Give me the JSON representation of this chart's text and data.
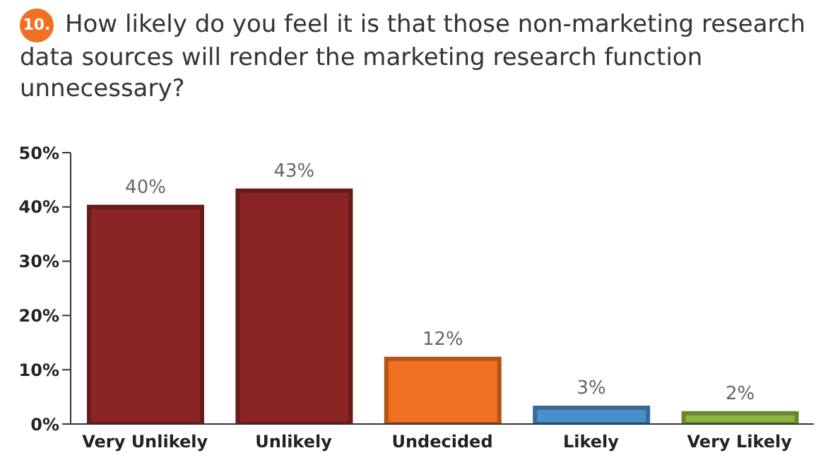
{
  "chart_data": {
    "type": "bar",
    "title": "How likely do you feel it is that those non-marketing research data sources will render the marketing research function unnecessary?",
    "annotations": [
      "10."
    ],
    "categories": [
      "Very Unlikely",
      "Unlikely",
      "Undecided",
      "Likely",
      "Very Likely"
    ],
    "values": [
      40,
      43,
      12,
      3,
      2
    ],
    "colors": [
      "#8b2424",
      "#8b2424",
      "#f07022",
      "#4a8fcb",
      "#8cb43e"
    ],
    "value_labels": [
      "40%",
      "43%",
      "12%",
      "3%",
      "2%"
    ],
    "ylim": [
      0,
      50
    ],
    "yticks": [
      {
        "value": 0,
        "label": "0%"
      },
      {
        "value": 10,
        "label": "10%"
      },
      {
        "value": 20,
        "label": "20%"
      },
      {
        "value": 30,
        "label": "30%"
      },
      {
        "value": 40,
        "label": "40%"
      },
      {
        "value": 50,
        "label": "50%"
      }
    ],
    "grid": false,
    "legend": false
  }
}
